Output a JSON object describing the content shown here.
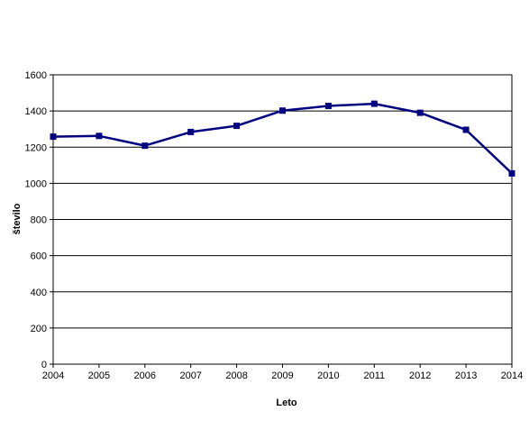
{
  "chart_data": {
    "type": "line",
    "title": "",
    "xlabel": "Leto",
    "ylabel": "število",
    "x": [
      "2004",
      "2005",
      "2006",
      "2007",
      "2008",
      "2009",
      "2010",
      "2011",
      "2012",
      "2013",
      "2014"
    ],
    "series": [
      {
        "values": [
          1258,
          1262,
          1208,
          1284,
          1318,
          1402,
          1428,
          1440,
          1390,
          1296,
          1055
        ]
      }
    ],
    "ylim": [
      0,
      1600
    ],
    "yticks": [
      0,
      200,
      400,
      600,
      800,
      1000,
      1200,
      1400,
      1600
    ],
    "grid": "horizontal",
    "legend": "none",
    "colors": {
      "series": "#000080",
      "grid": "#000000",
      "axis": "#000000",
      "background": "#ffffff"
    }
  }
}
